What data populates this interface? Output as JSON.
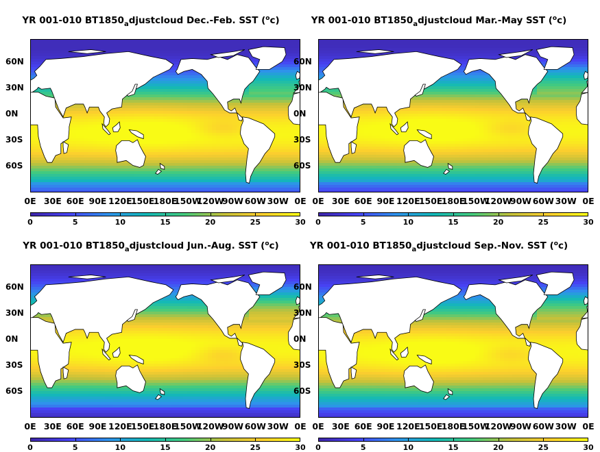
{
  "figure": {
    "panels": [
      {
        "id": "djf",
        "title_prefix": "YR 001-010 BT1850",
        "title_sub": "a",
        "title_mid": "djustcloud Dec.-Feb. SST (",
        "title_sup": "o",
        "title_end": "c)",
        "season": "DJF"
      },
      {
        "id": "mam",
        "title_prefix": "YR 001-010 BT1850",
        "title_sub": "a",
        "title_mid": "djustcloud Mar.-May SST (",
        "title_sup": "o",
        "title_end": "c)",
        "season": "MAM"
      },
      {
        "id": "jja",
        "title_prefix": "YR 001-010 BT1850",
        "title_sub": "a",
        "title_mid": "djustcloud Jun.-Aug. SST (",
        "title_sup": "o",
        "title_end": "c)",
        "season": "JJA"
      },
      {
        "id": "son",
        "title_prefix": "YR 001-010 BT1850",
        "title_sub": "a",
        "title_mid": "djustcloud Sep.-Nov. SST (",
        "title_sup": "o",
        "title_end": "c)",
        "season": "SON"
      }
    ],
    "lat_labels": [
      "60N",
      "30N",
      "0N",
      "30S",
      "60S"
    ],
    "lon_labels": [
      "0E",
      "30E",
      "60E",
      "90E",
      "120E",
      "150E",
      "180E",
      "150W",
      "120W",
      "90W",
      "60W",
      "30W",
      "0E"
    ],
    "colorbar": {
      "ticks": [
        "0",
        "5",
        "10",
        "15",
        "20",
        "25",
        "30"
      ],
      "range": [
        0,
        30
      ],
      "colormap": [
        "#3e26a8",
        "#4743f4",
        "#2f92ec",
        "#13b8b7",
        "#45cb7d",
        "#c4c13a",
        "#fcce2e",
        "#f9fb15"
      ]
    },
    "land_color": "#ffffff"
  }
}
